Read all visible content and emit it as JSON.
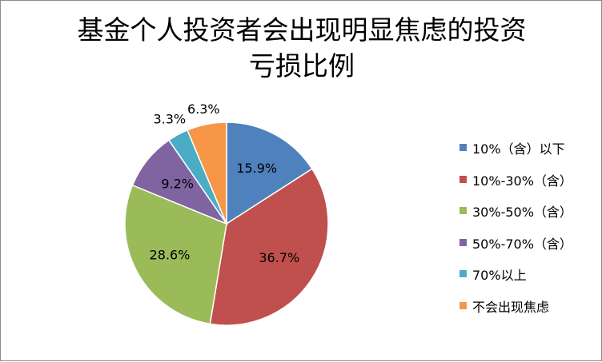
{
  "chart_data": {
    "type": "pie",
    "title_lines": [
      "基金个人投资者会出现明显焦虑的投资",
      "亏损比例"
    ],
    "categories": [
      "10%（含）以下",
      "10%-30%（含）",
      "30%-50%（含）",
      "50%-70%（含）",
      "70%以上",
      "不会出现焦虑"
    ],
    "values": [
      15.9,
      36.7,
      28.6,
      9.2,
      3.3,
      6.3
    ],
    "labels": [
      "15.9%",
      "36.7%",
      "28.6%",
      "9.2%",
      "3.3%",
      "6.3%"
    ],
    "colors": [
      "#4f81bd",
      "#c0504d",
      "#9bbb59",
      "#8064a2",
      "#4bacc6",
      "#f79646"
    ],
    "legend_position": "right"
  }
}
